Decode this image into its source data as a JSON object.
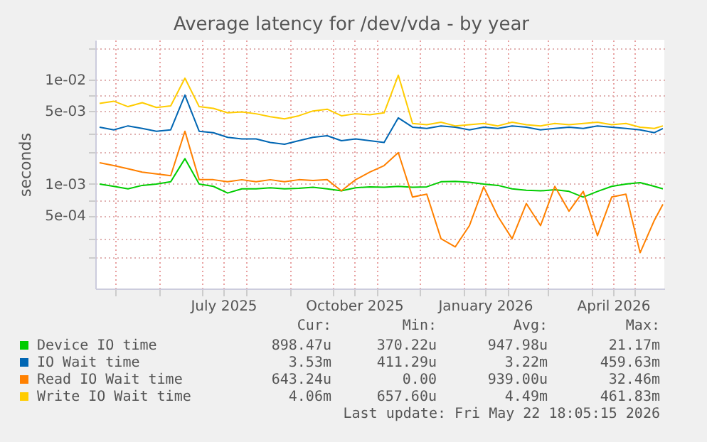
{
  "chart_data": {
    "type": "line",
    "title": "Average latency for /dev/vda - by year",
    "ylabel": "seconds",
    "x": [
      "2025-04-20",
      "2025-04-30",
      "2025-05-10",
      "2025-05-20",
      "2025-05-30",
      "2025-06-09",
      "2025-06-19",
      "2025-06-29",
      "2025-07-09",
      "2025-07-19",
      "2025-07-29",
      "2025-08-08",
      "2025-08-18",
      "2025-08-28",
      "2025-09-07",
      "2025-09-17",
      "2025-09-27",
      "2025-10-07",
      "2025-10-17",
      "2025-10-27",
      "2025-11-06",
      "2025-11-16",
      "2025-11-26",
      "2025-12-06",
      "2025-12-16",
      "2025-12-26",
      "2026-01-05",
      "2026-01-15",
      "2026-01-25",
      "2026-02-04",
      "2026-02-14",
      "2026-02-24",
      "2026-03-06",
      "2026-03-16",
      "2026-03-26",
      "2026-04-05",
      "2026-04-15",
      "2026-04-25",
      "2026-05-05",
      "2026-05-15",
      "2026-05-21"
    ],
    "series": [
      {
        "name": "Device IO time",
        "color": "#00cc00",
        "values": [
          0.001,
          0.00095,
          0.0009,
          0.00097,
          0.001,
          0.00105,
          0.00175,
          0.001,
          0.00095,
          0.00082,
          0.0009,
          0.0009,
          0.00092,
          0.0009,
          0.00091,
          0.00093,
          0.0009,
          0.00086,
          0.00092,
          0.00094,
          0.00093,
          0.00095,
          0.00093,
          0.00094,
          0.00105,
          0.00106,
          0.00104,
          0.001,
          0.00097,
          0.0009,
          0.00087,
          0.00086,
          0.00088,
          0.00085,
          0.00075,
          0.00085,
          0.00095,
          0.001,
          0.00103,
          0.00095,
          0.0009
        ]
      },
      {
        "name": "IO Wait time",
        "color": "#0066b3",
        "values": [
          0.0035,
          0.0033,
          0.0036,
          0.0034,
          0.0032,
          0.0033,
          0.0071,
          0.0032,
          0.0031,
          0.0028,
          0.0027,
          0.0027,
          0.0025,
          0.0024,
          0.0026,
          0.0028,
          0.0029,
          0.0026,
          0.0027,
          0.0026,
          0.0025,
          0.0043,
          0.0035,
          0.0034,
          0.0036,
          0.0035,
          0.0033,
          0.0035,
          0.0034,
          0.0036,
          0.0035,
          0.0033,
          0.0034,
          0.0035,
          0.0034,
          0.0036,
          0.0035,
          0.0034,
          0.0033,
          0.0031,
          0.0034
        ]
      },
      {
        "name": "Read IO Wait time",
        "color": "#ff8000",
        "values": [
          0.0016,
          0.0015,
          0.0014,
          0.0013,
          0.00125,
          0.0012,
          0.0032,
          0.0011,
          0.0011,
          0.00105,
          0.0011,
          0.00105,
          0.0011,
          0.00105,
          0.0011,
          0.00108,
          0.0011,
          0.00086,
          0.0011,
          0.0013,
          0.0015,
          0.002,
          0.00075,
          0.0008,
          0.0003,
          0.00025,
          0.0004,
          0.00094,
          0.00049,
          0.0003,
          0.00065,
          0.0004,
          0.00095,
          0.00055,
          0.00085,
          0.00032,
          0.00075,
          0.0008,
          0.00022,
          0.00045,
          0.00064
        ]
      },
      {
        "name": "Write IO Wait time",
        "color": "#ffcc00",
        "values": [
          0.0059,
          0.0062,
          0.0055,
          0.006,
          0.0054,
          0.0056,
          0.0103,
          0.0055,
          0.0053,
          0.0048,
          0.0049,
          0.0047,
          0.0044,
          0.0042,
          0.0045,
          0.005,
          0.0052,
          0.0045,
          0.0047,
          0.0046,
          0.0048,
          0.011,
          0.0038,
          0.0037,
          0.0039,
          0.0036,
          0.0037,
          0.0038,
          0.0036,
          0.0039,
          0.0037,
          0.0036,
          0.0038,
          0.0037,
          0.0038,
          0.0039,
          0.0037,
          0.0038,
          0.0035,
          0.0034,
          0.0036
        ]
      }
    ],
    "xlim": [
      "2025-04-17",
      "2026-05-22"
    ],
    "xticks": [
      {
        "value": "2025-05-01",
        "label": null
      },
      {
        "value": "2025-06-01",
        "label": null
      },
      {
        "value": "2025-07-01",
        "label": null
      },
      {
        "value": "2025-07-16",
        "label": "July 2025"
      },
      {
        "value": "2025-08-01",
        "label": null
      },
      {
        "value": "2025-09-01",
        "label": null
      },
      {
        "value": "2025-10-01",
        "label": null
      },
      {
        "value": "2025-10-16",
        "label": "October 2025"
      },
      {
        "value": "2025-11-01",
        "label": null
      },
      {
        "value": "2025-12-01",
        "label": null
      },
      {
        "value": "2026-01-01",
        "label": null
      },
      {
        "value": "2026-01-16",
        "label": "January 2026"
      },
      {
        "value": "2026-02-01",
        "label": null
      },
      {
        "value": "2026-03-01",
        "label": null
      },
      {
        "value": "2026-04-01",
        "label": null
      },
      {
        "value": "2026-04-16",
        "label": "April 2026"
      },
      {
        "value": "2026-05-01",
        "label": null
      }
    ],
    "log": true,
    "ylim": [
      0.0001,
      0.024
    ],
    "yticks": [
      {
        "value": 0.0002,
        "label": null
      },
      {
        "value": 0.0003,
        "label": null
      },
      {
        "value": 0.0005,
        "label": "5e-04"
      },
      {
        "value": 0.0007,
        "label": null
      },
      {
        "value": 0.001,
        "label": "1e-03"
      },
      {
        "value": 0.002,
        "label": null
      },
      {
        "value": 0.003,
        "label": null
      },
      {
        "value": 0.005,
        "label": "5e-03"
      },
      {
        "value": 0.007,
        "label": null
      },
      {
        "value": 0.01,
        "label": "1e-02"
      },
      {
        "value": 0.02,
        "label": null
      }
    ],
    "grid": true,
    "legend": "bottom",
    "marker": "none",
    "line_style": "solid",
    "annotations": [
      "Cur:",
      "Min:",
      "Avg:",
      "Max:",
      "898.47u",
      "370.22u",
      "947.98u",
      "21.17m",
      "3.53m",
      "411.29u",
      "3.22m",
      "459.63m",
      "643.24u",
      "0.00",
      "939.00u",
      "32.46m",
      "4.06m",
      "657.60u",
      "4.49m",
      "461.83m",
      "Last update: Fri May 22 18:05:15 2026"
    ]
  }
}
